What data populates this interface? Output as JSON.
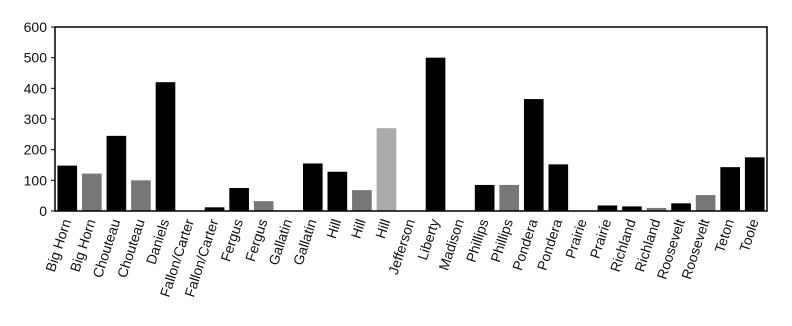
{
  "chart_data": {
    "type": "bar",
    "categories": [
      "Big Horn",
      "Big Horn",
      "Chouteau",
      "Chouteau",
      "Daniels",
      "Fallon/Carter",
      "Fallon/Carter",
      "Fergus",
      "Fergus",
      "Gallatin",
      "Gallatin",
      "Hill",
      "Hill",
      "Hill",
      "Jefferson",
      "Liberty",
      "Madison",
      "Phillips",
      "Phillips",
      "Pondera",
      "Pondera",
      "Prairie",
      "Prairie",
      "Richland",
      "Richland",
      "Roosevelt",
      "Roosevelt",
      "Teton",
      "Toole"
    ],
    "values": [
      148,
      122,
      245,
      100,
      420,
      0,
      12,
      75,
      32,
      0,
      155,
      128,
      68,
      270,
      0,
      500,
      0,
      85,
      85,
      365,
      152,
      0,
      18,
      15,
      10,
      25,
      52,
      143,
      175
    ],
    "colors": [
      "#000000",
      "#777777",
      "#000000",
      "#777777",
      "#000000",
      "#000000",
      "#000000",
      "#000000",
      "#777777",
      "#000000",
      "#000000",
      "#000000",
      "#777777",
      "#aaaaaa",
      "#000000",
      "#000000",
      "#000000",
      "#000000",
      "#777777",
      "#000000",
      "#000000",
      "#000000",
      "#000000",
      "#000000",
      "#777777",
      "#000000",
      "#777777",
      "#000000",
      "#000000"
    ],
    "ylim": [
      0,
      600
    ],
    "yticks": [
      0,
      100,
      200,
      300,
      400,
      500,
      600
    ],
    "grid": false
  }
}
